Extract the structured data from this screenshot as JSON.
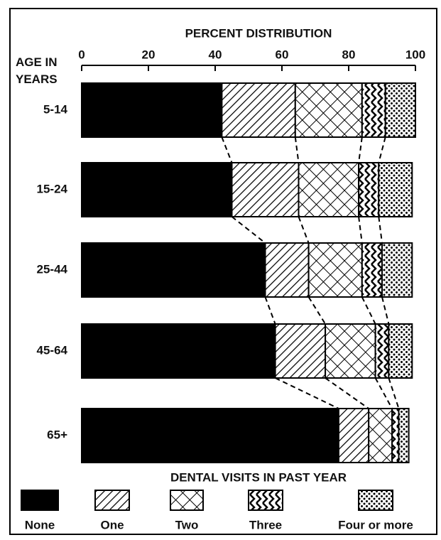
{
  "chart_data": {
    "type": "stacked_barh",
    "title": "PERCENT DISTRIBUTION",
    "y_label": "AGE IN YEARS",
    "legend_title": "DENTAL VISITS IN PAST YEAR",
    "categories": [
      "5-14",
      "15-24",
      "25-44",
      "45-64",
      "65+"
    ],
    "series": [
      {
        "name": "None",
        "color": "#000000",
        "pattern": "solid",
        "values": [
          42,
          45,
          55,
          58,
          77
        ]
      },
      {
        "name": "One",
        "color": "#000000",
        "pattern": "diagonal",
        "values": [
          22,
          20,
          13,
          15,
          9
        ]
      },
      {
        "name": "Two",
        "color": "#000000",
        "pattern": "crosshatch",
        "values": [
          20,
          18,
          16,
          15,
          7
        ]
      },
      {
        "name": "Three",
        "color": "#000000",
        "pattern": "chevron",
        "values": [
          7,
          6,
          6,
          4,
          2
        ]
      },
      {
        "name": "Four or more",
        "color": "#000000",
        "pattern": "dots",
        "values": [
          9,
          10,
          9,
          7,
          3
        ]
      }
    ],
    "xlim": [
      0,
      100
    ],
    "xticks": [
      0,
      20,
      40,
      60,
      80,
      100
    ],
    "legend": "bottom"
  }
}
